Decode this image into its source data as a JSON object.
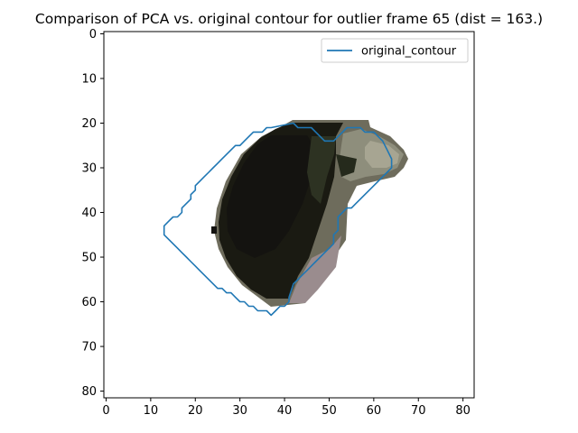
{
  "chart_data": {
    "type": "line",
    "title": "Comparison of PCA vs. original contour for outlier frame 65 (dist = 163.)",
    "xlabel": "",
    "ylabel": "",
    "xlim": [
      -0.5,
      82.5
    ],
    "ylim": [
      81.5,
      -0.5
    ],
    "y_inverted": true,
    "grid": false,
    "x_ticks": [
      0,
      10,
      20,
      30,
      40,
      50,
      60,
      70,
      80
    ],
    "y_ticks": [
      0,
      10,
      20,
      30,
      40,
      50,
      60,
      70,
      80
    ],
    "legend": {
      "position": "top-right",
      "entries": [
        "original_contour"
      ]
    },
    "background_image": {
      "description_colors": {
        "dark": "#181510",
        "mid": "#2e3322",
        "light": "#8c8a78",
        "pinkish": "#9a8a8c"
      }
    },
    "series": [
      {
        "name": "original_contour",
        "color": "#1f77b4",
        "x": [
          42,
          37,
          36,
          35,
          33,
          31,
          30,
          29,
          28,
          27,
          26,
          25,
          24,
          23,
          22,
          21,
          20,
          20,
          19,
          19,
          18,
          17,
          17,
          16,
          15,
          14,
          13,
          13,
          14,
          15,
          16,
          17,
          18,
          19,
          20,
          21,
          22,
          23,
          24,
          25,
          26,
          27,
          28,
          29,
          30,
          31,
          32,
          33,
          34,
          35,
          36,
          37,
          38,
          39,
          40,
          41,
          41,
          42,
          43,
          44,
          45,
          46,
          47,
          48,
          49,
          50,
          51,
          51,
          52,
          52,
          53,
          54,
          55,
          56,
          57,
          58,
          59,
          60,
          61,
          62,
          63,
          64,
          64,
          63,
          62,
          61,
          60,
          59,
          58,
          57,
          56,
          55,
          54,
          53,
          52,
          51,
          50,
          49,
          48,
          47,
          46,
          45,
          44,
          43,
          42
        ],
        "y": [
          20,
          21,
          21,
          22,
          22,
          24,
          25,
          25,
          26,
          27,
          28,
          29,
          30,
          31,
          32,
          33,
          34,
          35,
          36,
          37,
          38,
          39,
          40,
          41,
          41,
          42,
          43,
          45,
          46,
          47,
          48,
          49,
          50,
          51,
          52,
          53,
          54,
          55,
          56,
          57,
          57,
          58,
          58,
          59,
          60,
          60,
          61,
          61,
          62,
          62,
          62,
          63,
          62,
          61,
          61,
          60,
          59,
          56,
          55,
          54,
          53,
          52,
          51,
          50,
          49,
          48,
          47,
          45,
          44,
          41,
          40,
          39,
          39,
          38,
          37,
          36,
          35,
          34,
          33,
          32,
          31,
          30,
          28,
          26,
          24,
          23,
          22,
          22,
          22,
          21,
          21,
          21,
          21,
          22,
          23,
          24,
          24,
          24,
          23,
          22,
          21,
          21,
          21,
          21,
          20
        ]
      }
    ]
  }
}
